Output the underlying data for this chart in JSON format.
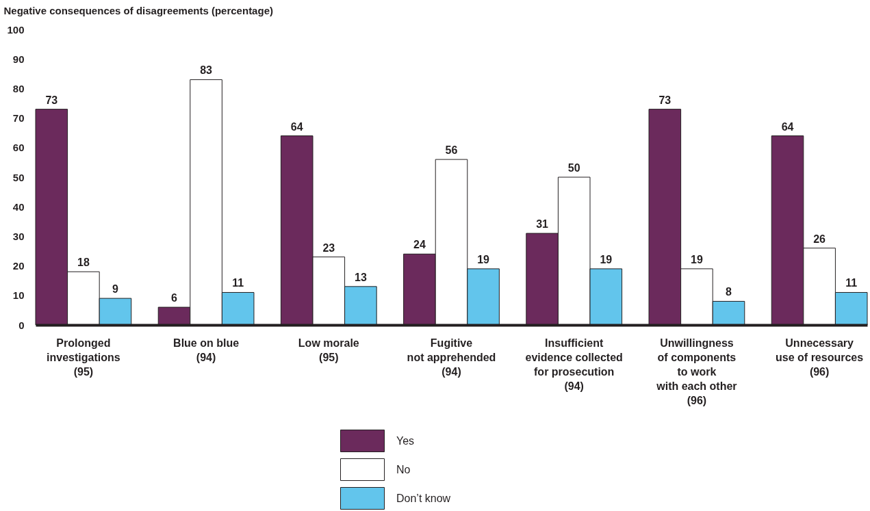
{
  "chart_data": {
    "type": "bar",
    "ylabel": "Negative consequences of disagreements (percentage)",
    "categories": [
      "Prolonged\ninvestigations\n(95)",
      "Blue on blue\n(94)",
      "Low morale\n(95)",
      "Fugitive\nnot apprehended\n(94)",
      "Insufficient\nevidence collected\nfor prosecution\n(94)",
      "Unwillingness\nof components\nto work\nwith each other\n(96)",
      "Unnecessary\nuse of resources\n(96)"
    ],
    "series": [
      {
        "name": "Yes",
        "color": "#6b2a5c",
        "values": [
          73,
          6,
          64,
          24,
          31,
          73,
          64
        ]
      },
      {
        "name": "No",
        "color": "#ffffff",
        "values": [
          18,
          83,
          23,
          56,
          50,
          19,
          26
        ]
      },
      {
        "name": "Don’t know",
        "color": "#62c5ec",
        "values": [
          9,
          11,
          13,
          19,
          19,
          8,
          11
        ]
      }
    ],
    "ylim": [
      0,
      100
    ],
    "yticks": [
      0,
      10,
      20,
      30,
      40,
      50,
      60,
      70,
      80,
      90,
      100
    ],
    "data_labels": true,
    "legend": "bottom"
  }
}
